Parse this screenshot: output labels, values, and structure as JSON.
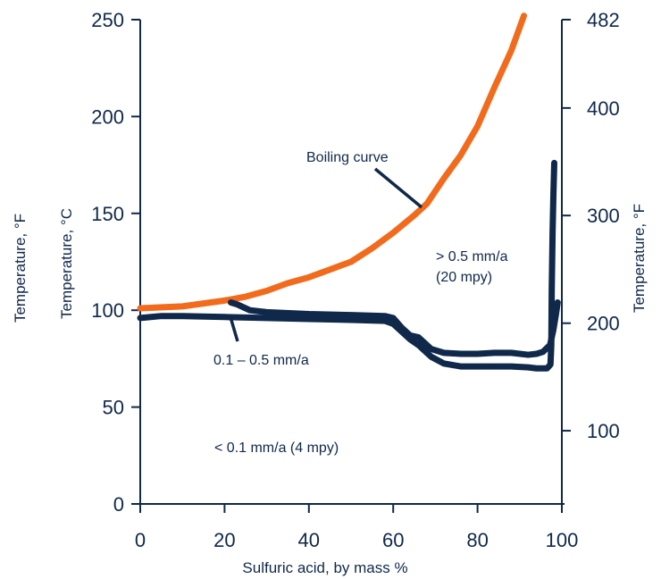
{
  "chart_data": {
    "type": "line",
    "title": "",
    "xlabel": "Sulfuric acid, by mass %",
    "ylabel_left": "Temperature, °C",
    "ylabel_left_outer": "Temperature, °F",
    "ylabel_right": "Temperature, °F",
    "xlim": [
      0,
      100
    ],
    "ylim": [
      0,
      250
    ],
    "x_ticks": [
      0,
      20,
      40,
      60,
      80,
      100
    ],
    "y_ticks_left": [
      0,
      50,
      100,
      150,
      200,
      250
    ],
    "y_ticks_right": [
      {
        "label": "100",
        "celsius": 37.8
      },
      {
        "label": "200",
        "celsius": 93.3
      },
      {
        "label": "300",
        "celsius": 148.9
      },
      {
        "label": "400",
        "celsius": 204.4
      },
      {
        "label": "482",
        "celsius": 250
      }
    ],
    "grid": false,
    "series": [
      {
        "name": "Boiling curve",
        "color": "#f26b1d",
        "x": [
          0,
          10,
          20,
          25,
          30,
          35,
          40,
          45,
          50,
          55,
          60,
          65,
          68,
          72,
          76,
          80,
          84,
          88,
          91
        ],
        "y": [
          101,
          102,
          105,
          107,
          110,
          114,
          117,
          121,
          125,
          132,
          140,
          149,
          155,
          168,
          180,
          195,
          215,
          234,
          252
        ]
      },
      {
        "name": "0.1 – 0.5 mm/a",
        "color": "#10284a",
        "x": [
          21.5,
          23,
          26,
          30,
          40,
          50,
          58,
          60,
          62,
          64,
          66,
          68,
          69,
          72,
          76,
          80,
          84,
          88,
          92,
          94,
          95.5,
          97.2,
          98,
          98.6,
          99
        ],
        "y": [
          104,
          103,
          100,
          99,
          98,
          97.5,
          97,
          96,
          91,
          87,
          86,
          82,
          80,
          78,
          77.5,
          77.5,
          78,
          78,
          77,
          77.5,
          78.5,
          82,
          90,
          98,
          104
        ]
      },
      {
        "name": "< 0.1 mm/a (4 mpy)",
        "color": "#10284a",
        "x": [
          0,
          5,
          10,
          20,
          30,
          40,
          50,
          58,
          60,
          62,
          64,
          66,
          68,
          69,
          72,
          76,
          80,
          84,
          88,
          92,
          94,
          95.5,
          96.5,
          97.3,
          97.5,
          97.6,
          97.8,
          98,
          98.2
        ],
        "y": [
          96,
          97,
          97,
          96.5,
          96,
          95.5,
          95,
          94.5,
          93,
          89,
          85,
          82,
          78,
          76,
          72.5,
          71,
          71,
          71,
          71,
          70.5,
          70,
          70,
          70,
          72,
          82,
          110,
          140,
          160,
          176
        ]
      }
    ],
    "annotations": [
      {
        "text": "Boiling curve"
      },
      {
        "text": "> 0.5 mm/a"
      },
      {
        "text": "(20 mpy)"
      },
      {
        "text": "0.1 – 0.5 mm/a"
      },
      {
        "text": "< 0.1 mm/a (4 mpy)"
      }
    ]
  }
}
